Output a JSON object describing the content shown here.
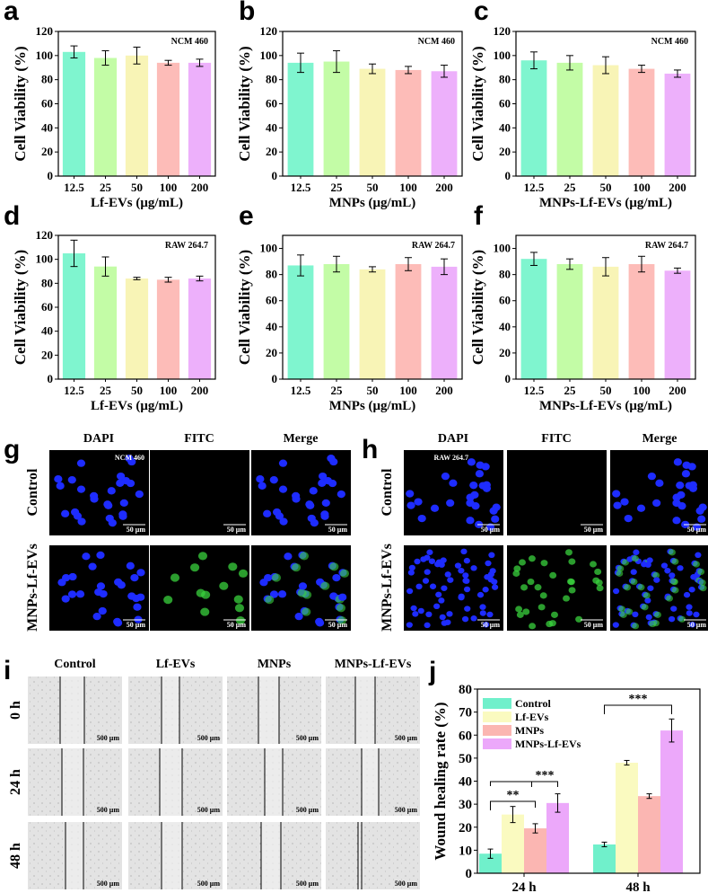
{
  "colors": {
    "c1": "#7ff5cf",
    "c2": "#c3fca6",
    "c3": "#f8f4b6",
    "c4": "#fdbcb8",
    "c5": "#edb0fb",
    "j_control": "#70f0cb",
    "j_lfevs": "#fafac0",
    "j_mnps": "#fbb6b2",
    "j_mnpslfevs": "#eca8fa",
    "dapi": "#1e2cff",
    "fitc": "#3ad23e"
  },
  "chart_data": [
    {
      "id": "a",
      "type": "bar",
      "label": "a",
      "cell_line": "NCM 460",
      "categories": [
        "12.5",
        "25",
        "50",
        "100",
        "200"
      ],
      "values": [
        103,
        98,
        100,
        94,
        94
      ],
      "errors": [
        5,
        6,
        7,
        2,
        3
      ],
      "xlabel": "Lf-EVs (μg/mL)",
      "ylabel": "Cell Viability (%)",
      "ylim": [
        0,
        120
      ],
      "yticks": [
        0,
        20,
        40,
        60,
        80,
        100,
        120
      ]
    },
    {
      "id": "b",
      "type": "bar",
      "label": "b",
      "cell_line": "NCM 460",
      "categories": [
        "12.5",
        "25",
        "50",
        "100",
        "200"
      ],
      "values": [
        94,
        95,
        89,
        88,
        87
      ],
      "errors": [
        8,
        9,
        4,
        3,
        5
      ],
      "xlabel": "MNPs (μg/mL)",
      "ylabel": "Cell Viability (%)",
      "ylim": [
        0,
        120
      ],
      "yticks": [
        0,
        20,
        40,
        60,
        80,
        100,
        120
      ]
    },
    {
      "id": "c",
      "type": "bar",
      "label": "c",
      "cell_line": "NCM 460",
      "categories": [
        "12.5",
        "25",
        "50",
        "100",
        "200"
      ],
      "values": [
        96,
        94,
        92,
        89,
        85
      ],
      "errors": [
        7,
        6,
        7,
        3,
        3
      ],
      "xlabel": "MNPs-Lf-EVs (μg/mL)",
      "ylabel": "Cell Viability (%)",
      "ylim": [
        0,
        120
      ],
      "yticks": [
        0,
        20,
        40,
        60,
        80,
        100,
        120
      ]
    },
    {
      "id": "d",
      "type": "bar",
      "label": "d",
      "cell_line": "RAW 264.7",
      "categories": [
        "12.5",
        "25",
        "50",
        "100",
        "200"
      ],
      "values": [
        105,
        94,
        84,
        83,
        84
      ],
      "errors": [
        11,
        8,
        1,
        2,
        2
      ],
      "xlabel": "Lf-EVs (μg/mL)",
      "ylabel": "Cell Viability (%)",
      "ylim": [
        0,
        120
      ],
      "yticks": [
        0,
        20,
        40,
        60,
        80,
        100,
        120
      ]
    },
    {
      "id": "e",
      "type": "bar",
      "label": "e",
      "cell_line": "RAW 264.7",
      "categories": [
        "12.5",
        "25",
        "50",
        "100",
        "200"
      ],
      "values": [
        87,
        88,
        84,
        88,
        86
      ],
      "errors": [
        8,
        6,
        2,
        5,
        6
      ],
      "xlabel": "MNPs (μg/mL)",
      "ylabel": "Cell Viability (%)",
      "ylim": [
        0,
        110
      ],
      "yticks": [
        0,
        20,
        40,
        60,
        80,
        100
      ]
    },
    {
      "id": "f",
      "type": "bar",
      "label": "f",
      "cell_line": "RAW 264.7",
      "categories": [
        "12.5",
        "25",
        "50",
        "100",
        "200"
      ],
      "values": [
        92,
        88,
        86,
        88,
        83
      ],
      "errors": [
        5,
        4,
        7,
        6,
        2
      ],
      "xlabel": "MNPs-Lf-EVs (μg/mL)",
      "ylabel": "Cell Viability (%)",
      "ylim": [
        0,
        110
      ],
      "yticks": [
        0,
        20,
        40,
        60,
        80,
        100
      ]
    },
    {
      "id": "j",
      "type": "bar",
      "label": "j",
      "categories": [
        "24 h",
        "48 h"
      ],
      "series": [
        {
          "name": "Control",
          "values": [
            8.5,
            12.5
          ],
          "errors": [
            2,
            1
          ]
        },
        {
          "name": "Lf-EVs",
          "values": [
            25.5,
            48
          ],
          "errors": [
            3.5,
            1
          ]
        },
        {
          "name": "MNPs",
          "values": [
            19.5,
            33.5
          ],
          "errors": [
            2,
            1
          ]
        },
        {
          "name": "MNPs-Lf-EVs",
          "values": [
            30.5,
            62
          ],
          "errors": [
            4,
            5
          ]
        }
      ],
      "ylabel": "Wound healing rate (%)",
      "ylim": [
        0,
        80
      ],
      "yticks": [
        0,
        10,
        20,
        30,
        40,
        50,
        60,
        70,
        80
      ],
      "annotations": [
        "***",
        "**",
        "***"
      ]
    }
  ],
  "fluorescence": {
    "g": {
      "label": "g",
      "cell_line": "NCM 460",
      "columns": [
        "DAPI",
        "FITC",
        "Merge"
      ],
      "rows": [
        "Control",
        "MNPs-Lf-EVs"
      ],
      "scale": "50 μm"
    },
    "h": {
      "label": "h",
      "cell_line": "RAW 264.7",
      "columns": [
        "DAPI",
        "FITC",
        "Merge"
      ],
      "rows": [
        "Control",
        "MNPs-Lf-EVs"
      ],
      "scale": "50 μm"
    }
  },
  "wound": {
    "label": "i",
    "columns": [
      "Control",
      "Lf-EVs",
      "MNPs",
      "MNPs-Lf-EVs"
    ],
    "rows": [
      "0 h",
      "24 h",
      "48 h"
    ],
    "scale": "500 μm"
  }
}
